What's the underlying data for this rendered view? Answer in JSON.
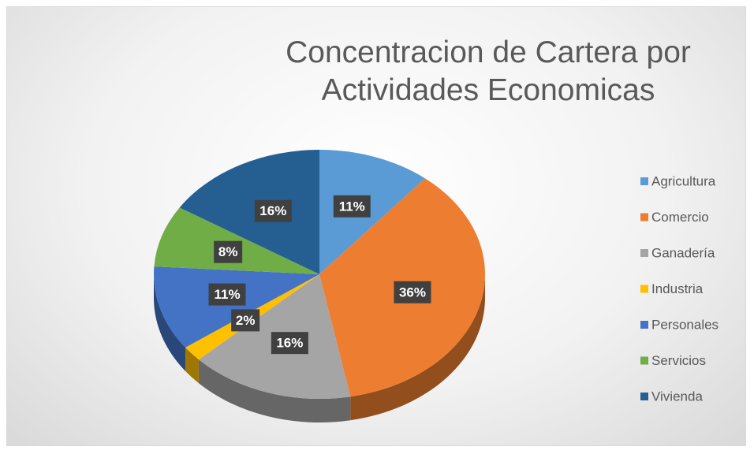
{
  "chart_data": {
    "type": "pie3d",
    "title": "Concentracion de Cartera por Actividades Economicas",
    "categories": [
      "Agricultura",
      "Comercio",
      "Ganadería",
      "Industria",
      "Personales",
      "Servicios",
      "Vivienda"
    ],
    "values": [
      11,
      36,
      16,
      2,
      11,
      8,
      16
    ],
    "value_labels": [
      "11%",
      "36%",
      "16%",
      "2%",
      "11%",
      "8%",
      "16%"
    ],
    "colors": [
      "#5b9bd5",
      "#ed7d31",
      "#a5a5a5",
      "#ffc000",
      "#4472c4",
      "#70ad47",
      "#255e91"
    ],
    "legend": "right"
  }
}
